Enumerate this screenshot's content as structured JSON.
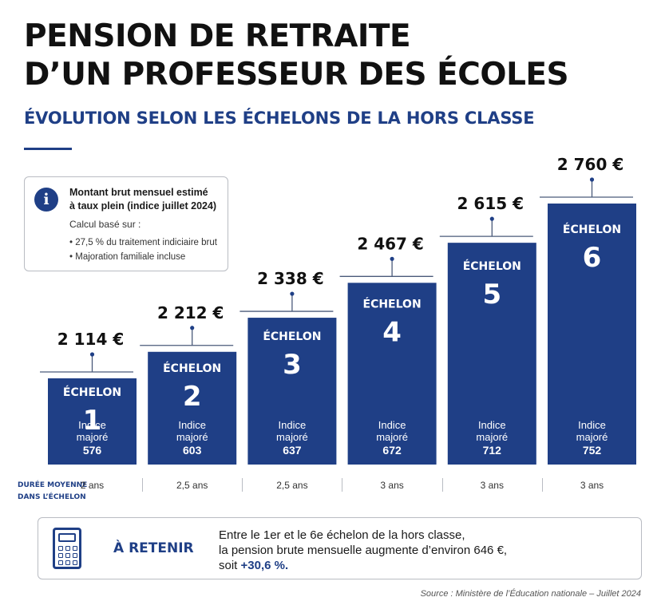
{
  "header": {
    "title_line1": "PENSION DE RETRAITE",
    "title_line2": "D’UN PROFESSEUR DES ÉCOLES",
    "subtitle": "ÉVOLUTION SELON LES ÉCHELONS DE LA HORS CLASSE"
  },
  "info": {
    "icon": "info-icon",
    "line1": "Montant brut mensuel estimé",
    "line2": "à taux plein (indice juillet 2024)",
    "calc": "Calcul basé sur :",
    "bullets": [
      "27,5 % du traitement indiciaire brut",
      "Majoration familiale incluse"
    ]
  },
  "chart_data": {
    "type": "bar",
    "categories": [
      "1",
      "2",
      "3",
      "4",
      "5",
      "6"
    ],
    "values": [
      2114,
      2212,
      2338,
      2467,
      2615,
      2760
    ],
    "value_labels": [
      "2 114 €",
      "2 212 €",
      "2 338 €",
      "2 467 €",
      "2 615 €",
      "2 760 €"
    ],
    "bar_label": "ÉCHELON",
    "indice_label_line1": "Indice",
    "indice_label_line2": "majoré",
    "indices": [
      "576",
      "603",
      "637",
      "672",
      "712",
      "752"
    ],
    "durations": [
      "2 ans",
      "2,5 ans",
      "2,5 ans",
      "3 ans",
      "3 ans",
      "3 ans"
    ],
    "bar_color": "#1f3f86"
  },
  "duration_row": {
    "label_line1": "DURÉE MOYENNE",
    "label_line2": "DANS L’ÉCHELON"
  },
  "retain": {
    "icon": "calculator-icon",
    "title": "À RETENIR",
    "line1": "Entre le 1er et le 6e échelon de la hors classe,",
    "line2": "la pension brute mensuelle augmente d’environ 646 €,",
    "line3_prefix": "soit ",
    "line3_highlight": "+30,6 %."
  },
  "source": "Source : Ministère de l’Éducation nationale – Juillet 2024"
}
